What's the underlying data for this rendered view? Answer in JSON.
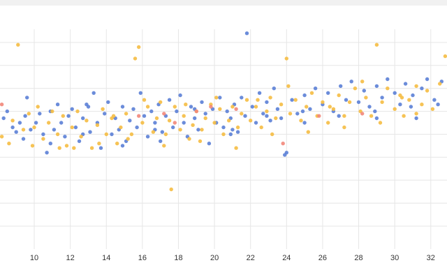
{
  "chart_data": {
    "type": "scatter",
    "title": "",
    "xlabel": "",
    "ylabel": "",
    "xlim": [
      8.1,
      32.9
    ],
    "ylim": [
      0,
      100
    ],
    "x_ticks": [
      10,
      12,
      14,
      16,
      18,
      20,
      22,
      24,
      26,
      28,
      30,
      32
    ],
    "x_tick_labels": [
      "10",
      "12",
      "14",
      "16",
      "18",
      "20",
      "22",
      "24",
      "26",
      "28",
      "30",
      "32"
    ],
    "y_grid_values": [
      10,
      20,
      30,
      40,
      50,
      60,
      70,
      80,
      90
    ],
    "grid": true,
    "legend": "none",
    "series": [
      {
        "color": "#5b7fd6",
        "points": [
          [
            8.3,
            57
          ],
          [
            8.8,
            53
          ],
          [
            9.0,
            51
          ],
          [
            9.2,
            55
          ],
          [
            9.4,
            48
          ],
          [
            9.6,
            66
          ],
          [
            9.8,
            52
          ],
          [
            10.1,
            55
          ],
          [
            10.3,
            59
          ],
          [
            10.5,
            50
          ],
          [
            10.7,
            42
          ],
          [
            10.9,
            60
          ],
          [
            11.1,
            52
          ],
          [
            11.3,
            63
          ],
          [
            11.5,
            55
          ],
          [
            11.7,
            49
          ],
          [
            11.9,
            58
          ],
          [
            12.1,
            61
          ],
          [
            12.3,
            53
          ],
          [
            12.5,
            47
          ],
          [
            12.7,
            57
          ],
          [
            12.9,
            63
          ],
          [
            13.1,
            51
          ],
          [
            13.3,
            68
          ],
          [
            13.5,
            55
          ],
          [
            13.7,
            44
          ],
          [
            13.9,
            59
          ],
          [
            14.1,
            64
          ],
          [
            14.3,
            50
          ],
          [
            14.5,
            57
          ],
          [
            14.7,
            52
          ],
          [
            14.9,
            62
          ],
          [
            15.1,
            47
          ],
          [
            15.3,
            56
          ],
          [
            15.5,
            61
          ],
          [
            15.7,
            53
          ],
          [
            15.9,
            68
          ],
          [
            16.1,
            58
          ],
          [
            16.3,
            49
          ],
          [
            16.5,
            60
          ],
          [
            16.7,
            55
          ],
          [
            16.9,
            63
          ],
          [
            17.1,
            51
          ],
          [
            17.3,
            58
          ],
          [
            17.5,
            65
          ],
          [
            17.7,
            53
          ],
          [
            17.9,
            60
          ],
          [
            18.1,
            67
          ],
          [
            18.3,
            55
          ],
          [
            18.5,
            49
          ],
          [
            18.7,
            62
          ],
          [
            18.9,
            57
          ],
          [
            19.1,
            52
          ],
          [
            19.3,
            64
          ],
          [
            19.5,
            59
          ],
          [
            19.7,
            46
          ],
          [
            19.9,
            61
          ],
          [
            20.1,
            55
          ],
          [
            20.3,
            66
          ],
          [
            20.5,
            53
          ],
          [
            20.7,
            60
          ],
          [
            20.9,
            57
          ],
          [
            21.1,
            63
          ],
          [
            21.3,
            51
          ],
          [
            21.5,
            66
          ],
          [
            21.7,
            58
          ],
          [
            21.8,
            94
          ],
          [
            22.1,
            62
          ],
          [
            22.3,
            55
          ],
          [
            22.5,
            68
          ],
          [
            22.7,
            59
          ],
          [
            22.9,
            64
          ],
          [
            23.1,
            56
          ],
          [
            23.3,
            70
          ],
          [
            23.5,
            61
          ],
          [
            23.7,
            57
          ],
          [
            23.9,
            41
          ],
          [
            24.0,
            42
          ],
          [
            24.3,
            65
          ],
          [
            24.6,
            59
          ],
          [
            25.0,
            67
          ],
          [
            25.3,
            61
          ],
          [
            25.6,
            70
          ],
          [
            26.0,
            63
          ],
          [
            26.3,
            68
          ],
          [
            26.6,
            60
          ],
          [
            27.0,
            71
          ],
          [
            27.3,
            65
          ],
          [
            27.6,
            73
          ],
          [
            28.0,
            64
          ],
          [
            28.3,
            69
          ],
          [
            28.6,
            62
          ],
          [
            29.0,
            71
          ],
          [
            29.3,
            66
          ],
          [
            29.6,
            74
          ],
          [
            30.0,
            68
          ],
          [
            30.3,
            63
          ],
          [
            30.6,
            72
          ],
          [
            31.0,
            67
          ],
          [
            31.2,
            57
          ],
          [
            31.5,
            70
          ],
          [
            31.8,
            74
          ],
          [
            32.2,
            65
          ],
          [
            32.6,
            73
          ],
          [
            8.5,
            60
          ],
          [
            9.5,
            58
          ],
          [
            10.9,
            46
          ],
          [
            12.7,
            50
          ],
          [
            14.9,
            45
          ],
          [
            16.7,
            52
          ],
          [
            18.9,
            61
          ],
          [
            20.9,
            50
          ],
          [
            22.9,
            58
          ],
          [
            24.9,
            60
          ],
          [
            26.9,
            58
          ],
          [
            28.9,
            60
          ],
          [
            30.9,
            62
          ],
          [
            32.4,
            63
          ],
          [
            13.0,
            62
          ],
          [
            17.0,
            47
          ],
          [
            21.0,
            52
          ],
          [
            25.0,
            55
          ],
          [
            29.0,
            57
          ]
        ]
      },
      {
        "color": "#f5bd42",
        "points": [
          [
            8.2,
            49
          ],
          [
            8.6,
            46
          ],
          [
            8.8,
            56
          ],
          [
            9.1,
            89
          ],
          [
            9.4,
            52
          ],
          [
            9.7,
            59
          ],
          [
            10.0,
            53
          ],
          [
            10.2,
            62
          ],
          [
            10.5,
            48
          ],
          [
            10.8,
            55
          ],
          [
            11.0,
            60
          ],
          [
            11.3,
            50
          ],
          [
            11.6,
            58
          ],
          [
            11.8,
            45
          ],
          [
            12.1,
            53
          ],
          [
            12.4,
            60
          ],
          [
            12.6,
            49
          ],
          [
            12.9,
            56
          ],
          [
            13.2,
            44
          ],
          [
            13.5,
            54
          ],
          [
            13.8,
            61
          ],
          [
            14.0,
            50
          ],
          [
            14.3,
            57
          ],
          [
            14.6,
            46
          ],
          [
            14.8,
            53
          ],
          [
            15.1,
            59
          ],
          [
            15.4,
            50
          ],
          [
            15.6,
            83
          ],
          [
            15.8,
            88
          ],
          [
            16.0,
            55
          ],
          [
            16.3,
            62
          ],
          [
            16.6,
            51
          ],
          [
            16.8,
            57
          ],
          [
            17.0,
            64
          ],
          [
            17.3,
            50
          ],
          [
            17.5,
            56
          ],
          [
            17.6,
            26
          ],
          [
            17.8,
            62
          ],
          [
            18.1,
            52
          ],
          [
            18.3,
            58
          ],
          [
            18.6,
            48
          ],
          [
            18.8,
            54
          ],
          [
            19.0,
            60
          ],
          [
            19.3,
            52
          ],
          [
            19.5,
            57
          ],
          [
            19.8,
            63
          ],
          [
            20.0,
            55
          ],
          [
            20.3,
            61
          ],
          [
            20.5,
            50
          ],
          [
            20.8,
            56
          ],
          [
            21.0,
            62
          ],
          [
            21.3,
            53
          ],
          [
            21.5,
            59
          ],
          [
            21.8,
            65
          ],
          [
            22.0,
            56
          ],
          [
            22.3,
            62
          ],
          [
            22.6,
            53
          ],
          [
            22.9,
            60
          ],
          [
            23.1,
            66
          ],
          [
            23.4,
            57
          ],
          [
            23.7,
            63
          ],
          [
            24.0,
            83
          ],
          [
            24.2,
            59
          ],
          [
            24.5,
            65
          ],
          [
            24.8,
            56
          ],
          [
            25.1,
            62
          ],
          [
            25.4,
            68
          ],
          [
            25.7,
            58
          ],
          [
            26.0,
            64
          ],
          [
            26.3,
            55
          ],
          [
            26.6,
            61
          ],
          [
            26.9,
            67
          ],
          [
            27.2,
            58
          ],
          [
            27.5,
            64
          ],
          [
            27.8,
            70
          ],
          [
            28.1,
            60
          ],
          [
            28.4,
            66
          ],
          [
            28.7,
            58
          ],
          [
            29.0,
            89
          ],
          [
            29.3,
            64
          ],
          [
            29.6,
            70
          ],
          [
            30.0,
            61
          ],
          [
            30.3,
            67
          ],
          [
            30.5,
            58
          ],
          [
            30.8,
            65
          ],
          [
            31.2,
            71
          ],
          [
            31.5,
            63
          ],
          [
            31.8,
            69
          ],
          [
            32.1,
            61
          ],
          [
            32.5,
            72
          ],
          [
            32.8,
            84
          ],
          [
            9.9,
            45
          ],
          [
            11.4,
            44
          ],
          [
            13.6,
            46
          ],
          [
            15.2,
            48
          ],
          [
            17.2,
            45
          ],
          [
            19.2,
            47
          ],
          [
            21.2,
            44
          ],
          [
            23.2,
            50
          ],
          [
            25.2,
            51
          ],
          [
            27.2,
            53
          ],
          [
            29.2,
            55
          ],
          [
            31.2,
            59
          ],
          [
            16.1,
            65
          ],
          [
            20.1,
            66
          ],
          [
            24.1,
            71
          ],
          [
            28.2,
            73
          ],
          [
            12.2,
            44
          ],
          [
            14.4,
            58
          ],
          [
            18.4,
            63
          ],
          [
            22.4,
            65
          ],
          [
            26.4,
            62
          ],
          [
            30.4,
            66
          ]
        ]
      },
      {
        "color": "#f2877a",
        "points": [
          [
            8.2,
            63
          ],
          [
            15.8,
            58
          ],
          [
            17.2,
            59
          ],
          [
            17.8,
            55
          ],
          [
            19.0,
            60
          ],
          [
            19.8,
            62
          ],
          [
            21.2,
            61
          ],
          [
            23.8,
            46
          ],
          [
            25.8,
            58
          ],
          [
            28.2,
            59
          ]
        ]
      }
    ]
  }
}
